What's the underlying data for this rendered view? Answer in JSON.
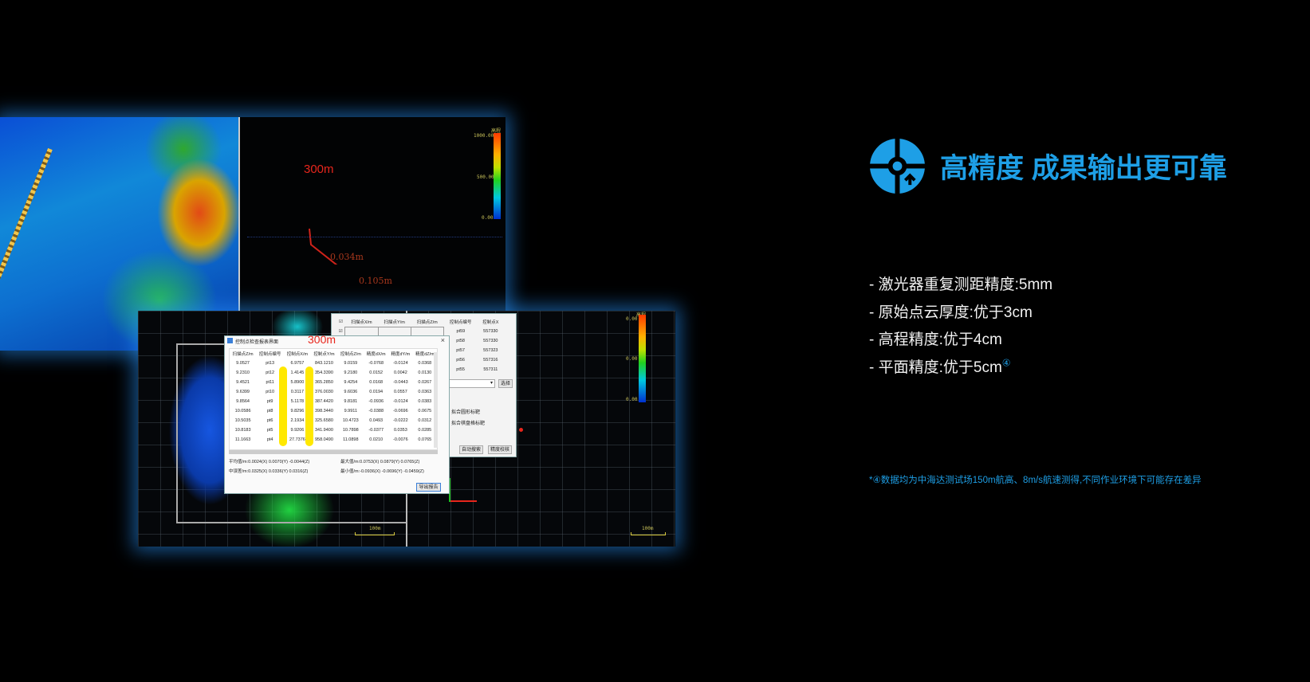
{
  "heading": {
    "title": "高精度 成果输出更可靠",
    "icon": "target-crosshair-arrow-icon",
    "accent": "#1e9fe6"
  },
  "specs": [
    {
      "text": "- 激光器重复测距精度:5mm"
    },
    {
      "text": "- 原始点云厚度:优于3cm"
    },
    {
      "text": "- 高程精度:优于4cm"
    },
    {
      "text": "- 平面精度:优于5cm",
      "mark": "④"
    }
  ],
  "footnote": "*④数据均为中海达测试场150m航高、8m/s航速测得,不同作业环境下可能存在差异",
  "top_view": {
    "label_altitude": "300m",
    "measure_1": "0.034m",
    "measure_2": "0.105m",
    "legend": {
      "title": "高程",
      "max": "1000.00",
      "mid": "500.00",
      "min": "0.00"
    }
  },
  "bottom_view": {
    "label_altitude": "300m",
    "legend": {
      "title": "高程",
      "max": "0.00",
      "mid": "0.00",
      "min": "0.00"
    },
    "scale_left": "100m",
    "scale_right": "100m",
    "back_window": {
      "headers": [
        "扫描点X/m",
        "扫描点Y/m",
        "扫描点Z/m",
        "控制点编号",
        "控制点X"
      ],
      "rows": [
        [
          "pt59",
          "557330"
        ],
        [
          "pt58",
          "557330"
        ],
        [
          "pt57",
          "557323"
        ],
        [
          "pt56",
          "557316"
        ],
        [
          "pt55",
          "557311"
        ]
      ],
      "select_button": "选择",
      "option_1": "拟合圆形标靶",
      "option_2": "拟合棋盘格标靶",
      "auto_search_button": "自动搜索",
      "accuracy_check_button": "精度校核"
    },
    "report_dialog": {
      "title": "控制点检查报表界面",
      "headers": [
        "扫描点Z/m",
        "控制点编号",
        "控制点X/m",
        "控制点Y/m",
        "控制点Z/m",
        "精度dX/m",
        "精度dY/m",
        "精度dZ/m"
      ],
      "rows": [
        [
          "9.0527",
          "pt13",
          "6.9757",
          "843.1210",
          "9.0159",
          "-0.0768",
          "-0.0124",
          "0.0368"
        ],
        [
          "9.2310",
          "pt12",
          "1.4145",
          "354.3390",
          "9.2180",
          "0.0152",
          "0.0042",
          "0.0130"
        ],
        [
          "9.4521",
          "pt11",
          "5.8900",
          "365.2850",
          "9.4254",
          "0.0168",
          "-0.0443",
          "0.0267"
        ],
        [
          "9.6399",
          "pt10",
          "0.3117",
          "376.0030",
          "9.6036",
          "0.0194",
          "0.0557",
          "0.0363"
        ],
        [
          "9.8564",
          "pt9",
          "5.1178",
          "387.4420",
          "9.8181",
          "-0.0936",
          "-0.0124",
          "0.0383"
        ],
        [
          "10.0586",
          "pt8",
          "9.8296",
          "398.3440",
          "9.9911",
          "-0.0388",
          "-0.0696",
          "0.0675"
        ],
        [
          "10.5035",
          "pt6",
          "2.1934",
          "325.6580",
          "10.4723",
          "0.0493",
          "-0.0222",
          "0.0312"
        ],
        [
          "10.8183",
          "pt5",
          "9.9206",
          "341.9400",
          "10.7898",
          "-0.0377",
          "0.0353",
          "0.0285"
        ],
        [
          "11.1663",
          "pt4",
          "27.7376",
          "958.0490",
          "11.0898",
          "0.0210",
          "-0.0076",
          "0.0765"
        ]
      ],
      "mean": "平均值/m:0.0024(X) 0.0070(Y) -0.0044(Z)",
      "rmse": "中误差/m:0.0325(X) 0.0336(Y) 0.0316(Z)",
      "max": "最大值/m:0.0753(X) 0.0879(Y) 0.0765(Z)",
      "min": "最小值/m:-0.0936(X) -0.0696(Y) -0.0459(Z)",
      "export_button": "导出报告"
    }
  }
}
